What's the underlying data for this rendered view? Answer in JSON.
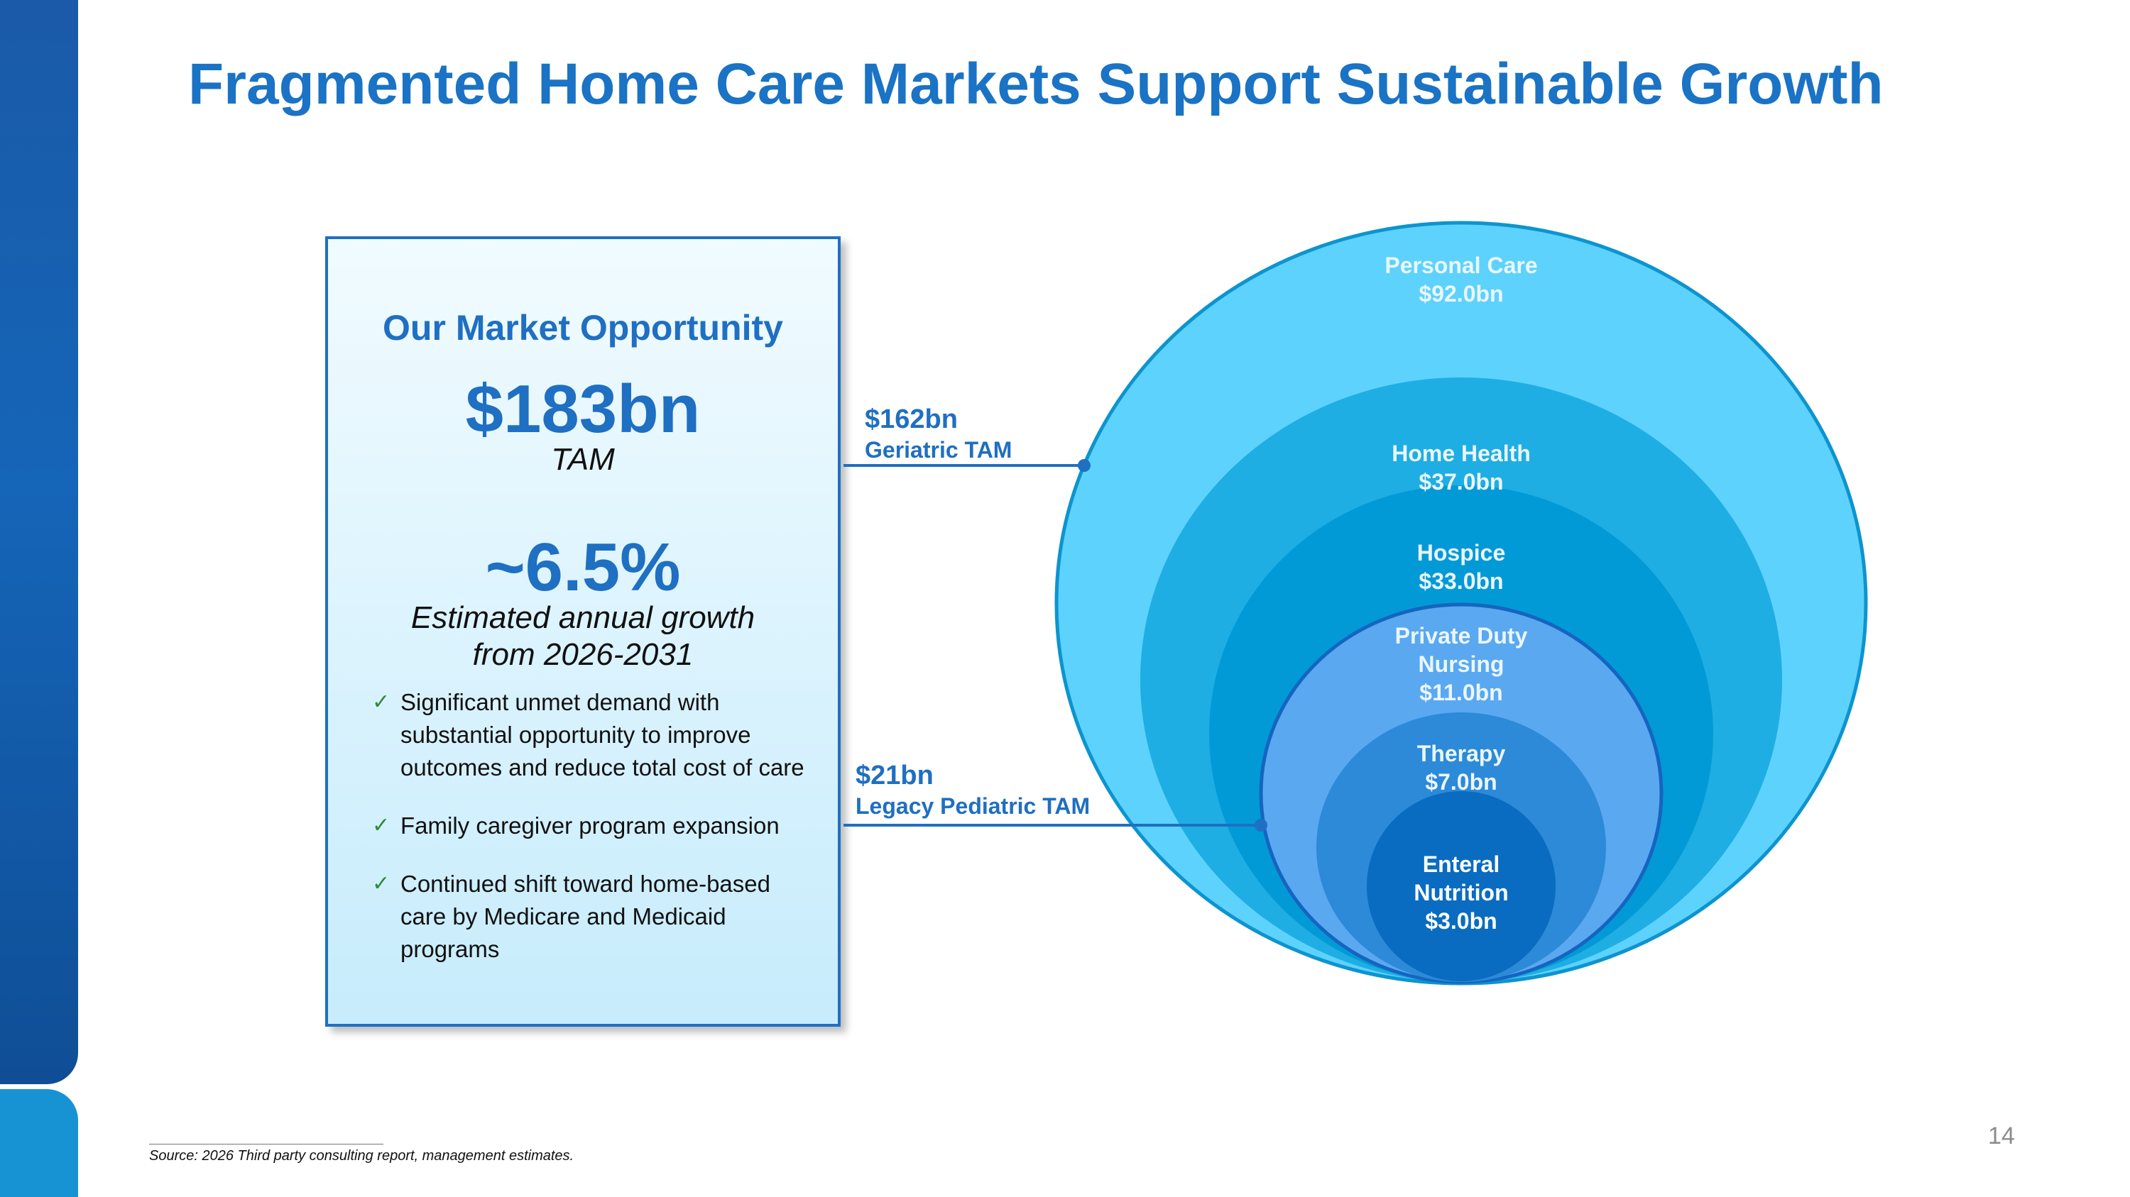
{
  "title": "Fragmented Home Care Markets Support Sustainable Growth",
  "card": {
    "heading": "Our Market Opportunity",
    "tam_value": "$183bn",
    "tam_label": "TAM",
    "growth_value": "~6.5%",
    "growth_label_line1": "Estimated annual growth",
    "growth_label_line2": "from 2026-2031",
    "bullets": [
      "Significant unmet demand with substantial opportunity to improve outcomes and reduce total cost of care",
      "Family caregiver program expansion",
      "Continued shift toward home-based care by Medicare and Medicaid programs"
    ],
    "check_icon": "checkmark-icon"
  },
  "callouts": {
    "geriatric": {
      "value": "$162bn",
      "label": "Geriatric TAM"
    },
    "pediatric": {
      "value": "$21bn",
      "label": "Legacy Pediatric TAM"
    }
  },
  "segments": [
    {
      "name": "Personal Care",
      "value": "$92.0bn",
      "color": "#5dd2fc"
    },
    {
      "name": "Home Health",
      "value": "$37.0bn",
      "color": "#1eaee3"
    },
    {
      "name": "Hospice",
      "value": "$33.0bn",
      "color": "#029ad6"
    },
    {
      "name_line1": "Private Duty",
      "name_line2": "Nursing",
      "value": "$11.0bn",
      "color": "#5aa8f0"
    },
    {
      "name": "Therapy",
      "value": "$7.0bn",
      "color": "#2c8ad8"
    },
    {
      "name_line1": "Enteral",
      "name_line2": "Nutrition",
      "value": "$3.0bn",
      "color": "#0a6cc0"
    }
  ],
  "footnote": "Source: 2026 Third party consulting report, management estimates.",
  "page_number": "14"
}
